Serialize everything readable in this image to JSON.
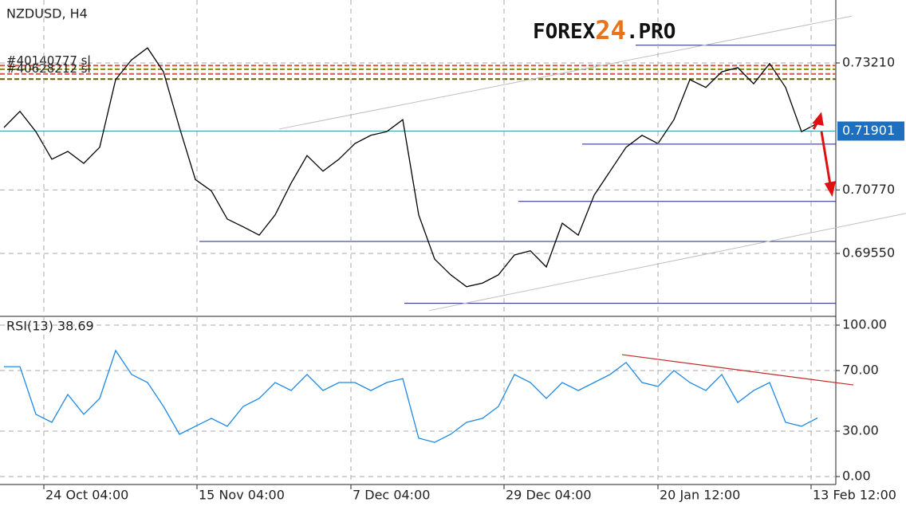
{
  "chart_data": [
    {
      "type": "line",
      "title": "NZDUSD, H4",
      "values": [
        0.7197,
        0.7228,
        0.7189,
        0.7136,
        0.7151,
        0.7128,
        0.7159,
        0.7289,
        0.7327,
        0.735,
        0.7304,
        0.7197,
        0.7097,
        0.7075,
        0.7021,
        0.7006,
        0.699,
        0.7029,
        0.709,
        0.7143,
        0.7113,
        0.7136,
        0.7166,
        0.7182,
        0.7189,
        0.7212,
        0.7029,
        0.6944,
        0.6914,
        0.6891,
        0.6898,
        0.6914,
        0.6952,
        0.696,
        0.6929,
        0.7013,
        0.699,
        0.7067,
        0.7113,
        0.7159,
        0.7182,
        0.7166,
        0.7212,
        0.7289,
        0.7274,
        0.7304,
        0.7312,
        0.7281,
        0.732,
        0.7274,
        0.7189,
        0.7205
      ],
      "color": "#000000",
      "xlim": [
        -0.25,
        52.15
      ],
      "ylim": [
        0.6834,
        0.7442
      ],
      "yticks": [
        {
          "value": 0.6955,
          "label": "0.69550"
        },
        {
          "value": 0.7077,
          "label": "0.70770"
        },
        {
          "value": 0.7321,
          "label": "0.73210"
        }
      ],
      "grid": true,
      "current_price": 0.71901,
      "current_color": "#1e6fc0",
      "levels": [
        {
          "value": 0.7355,
          "start": 39.6
        },
        {
          "value": 0.7165,
          "start": 36.25
        },
        {
          "value": 0.7055,
          "start": 32.25
        },
        {
          "value": 0.6978,
          "start": 12.25
        },
        {
          "value": 0.6859,
          "start": 25.1
        }
      ],
      "level_color": "#1a237e",
      "channel": [
        {
          "x": [
            17.25,
            53.15
          ],
          "y": [
            0.7194,
            0.7411
          ]
        },
        {
          "x": [
            26.65,
            56.55
          ],
          "y": [
            0.6845,
            0.7032
          ]
        }
      ],
      "channel_color": "#c0c0c0",
      "orders": [
        {
          "value": 0.7316,
          "color": "#d9534f",
          "label": "#40140777 sl"
        },
        {
          "value": 0.7309,
          "color": "#8b8b00"
        },
        {
          "value": 0.73,
          "color": "#d9534f",
          "label": "#40628212 sl"
        },
        {
          "value": 0.729,
          "color": "#6b5b00"
        }
      ],
      "logo": [
        "FOREX",
        "24",
        ".PRO"
      ]
    },
    {
      "type": "line",
      "title": "RSI(13) 38.69",
      "values": [
        72.6,
        72.6,
        41.1,
        35.8,
        54.2,
        41.1,
        51.6,
        83.2,
        67.4,
        62.1,
        46.3,
        27.9,
        33.2,
        38.4,
        33.2,
        46.3,
        51.6,
        62.1,
        56.8,
        67.4,
        56.8,
        62.1,
        62.1,
        56.8,
        62.1,
        64.7,
        25.3,
        22.6,
        27.9,
        35.8,
        38.4,
        46.3,
        67.4,
        62.1,
        51.6,
        62.1,
        56.8,
        62.1,
        67.4,
        75.3,
        62.1,
        59.5,
        70.0,
        62.1,
        56.8,
        67.4,
        48.9,
        56.8,
        62.1,
        35.8,
        33.2,
        38.69
      ],
      "color": "#1e88e5",
      "xlim": [
        -0.25,
        52.15
      ],
      "ylim": [
        0,
        100
      ],
      "yticks": [
        {
          "value": 0,
          "label": "0.00"
        },
        {
          "value": 30,
          "label": "30.00"
        },
        {
          "value": 70,
          "label": "70.00"
        },
        {
          "value": 100,
          "label": "100.00"
        }
      ],
      "grid": true,
      "trendline": {
        "x": [
          38.75,
          53.25
        ],
        "y": [
          80.5,
          60.5
        ],
        "color": "#c62828"
      },
      "xticks": [
        {
          "value": 2.5,
          "label": "24 Oct 04:00"
        },
        {
          "value": 12.1,
          "label": "15 Nov 04:00"
        },
        {
          "value": 21.75,
          "label": "7 Dec 04:00"
        },
        {
          "value": 31.35,
          "label": "29 Dec 04:00"
        },
        {
          "value": 41,
          "label": "20 Jan 12:00"
        },
        {
          "value": 50.6,
          "label": "13 Feb 12:00"
        }
      ]
    }
  ]
}
